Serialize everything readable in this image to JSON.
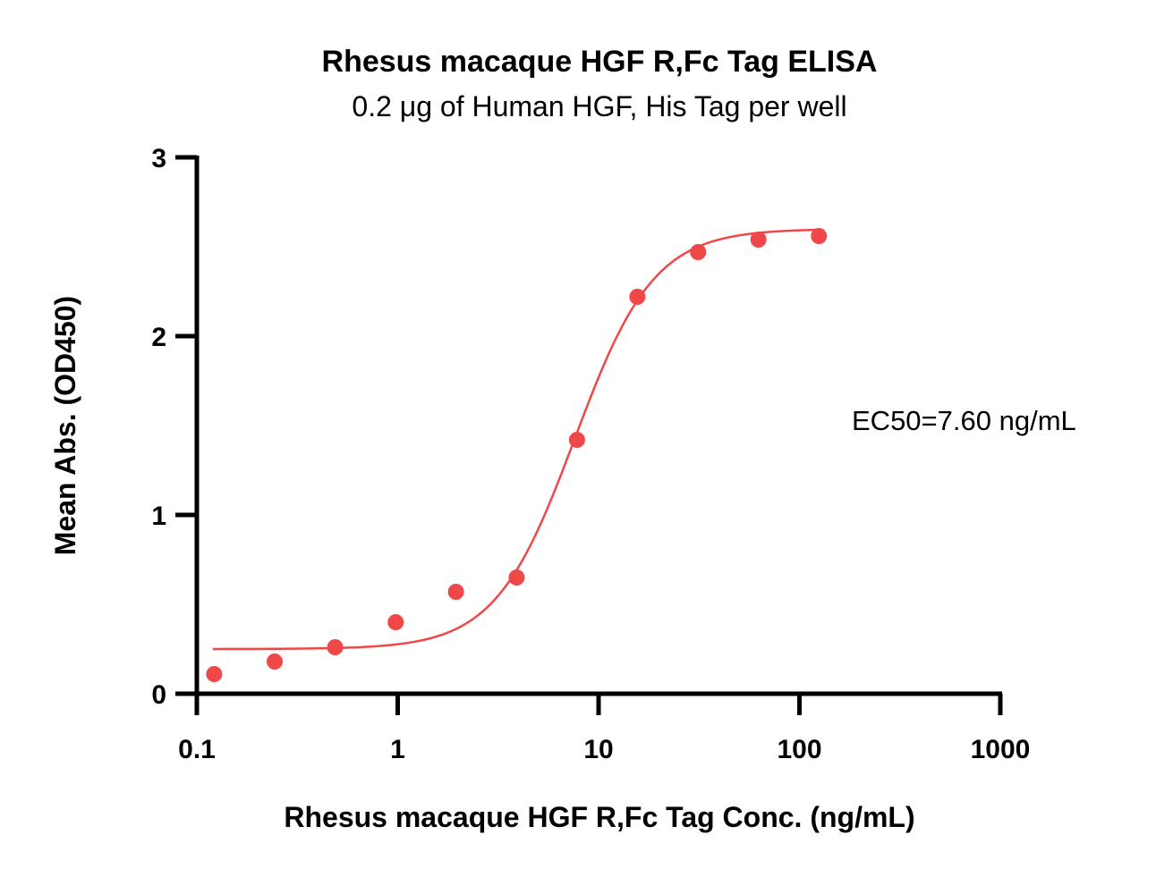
{
  "chart_data": {
    "type": "scatter",
    "title": "Rhesus macaque HGF R,Fc Tag ELISA",
    "subtitle": "0.2 μg of Human HGF, His Tag per well",
    "xlabel": "Rhesus macaque HGF R,Fc Tag Conc. (ng/mL)",
    "ylabel": "Mean Abs. (OD450)",
    "x_scale": "log",
    "xlim": [
      0.1,
      1000
    ],
    "ylim": [
      0,
      3
    ],
    "x_ticks": [
      0.1,
      1,
      10,
      100,
      1000
    ],
    "x_tick_labels": [
      "0.1",
      "1",
      "10",
      "100",
      "1000"
    ],
    "y_ticks": [
      0,
      1,
      2,
      3
    ],
    "y_tick_labels": [
      "0",
      "1",
      "2",
      "3"
    ],
    "grid": false,
    "color": "#f04848",
    "series": [
      {
        "x": [
          0.122,
          0.244,
          0.488,
          0.977,
          1.95,
          3.91,
          7.81,
          15.6,
          31.3,
          62.5,
          125
        ],
        "y": [
          0.11,
          0.18,
          0.26,
          0.4,
          0.57,
          0.65,
          1.42,
          2.22,
          2.47,
          2.54,
          2.56
        ]
      }
    ],
    "fit": {
      "model": "4PL",
      "bottom": 0.25,
      "top": 2.6,
      "ec50": 7.6,
      "hill": 2.2,
      "x_range": [
        0.12,
        125
      ]
    },
    "annotations": [
      {
        "text": "EC50=7.60 ng/mL"
      }
    ]
  }
}
